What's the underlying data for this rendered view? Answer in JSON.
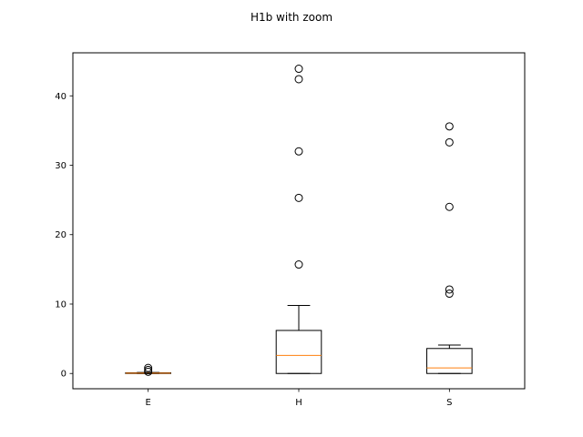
{
  "chart_data": {
    "type": "box",
    "title": "H1b with zoom",
    "xlabel": "",
    "ylabel": "",
    "ylim": [
      -2.2,
      46.2
    ],
    "yticks": [
      0,
      10,
      20,
      30,
      40
    ],
    "grid": false,
    "colors": {
      "box": "#000000",
      "median": "#ff7f0e",
      "background": "#ffffff"
    },
    "categories": [
      "E",
      "H",
      "S"
    ],
    "boxes": [
      {
        "label": "E",
        "whisker_low": 0.0,
        "q1": 0.0,
        "median": 0.05,
        "q3": 0.1,
        "whisker_high": 0.15,
        "outliers": [
          0.25,
          0.5,
          0.8
        ]
      },
      {
        "label": "H",
        "whisker_low": 0.0,
        "q1": 0.0,
        "median": 2.6,
        "q3": 6.2,
        "whisker_high": 9.8,
        "outliers": [
          15.7,
          25.3,
          32.0,
          42.4,
          43.9
        ]
      },
      {
        "label": "S",
        "whisker_low": 0.0,
        "q1": 0.0,
        "median": 0.8,
        "q3": 3.6,
        "whisker_high": 4.1,
        "outliers": [
          11.5,
          12.1,
          24.0,
          33.3,
          35.6
        ]
      }
    ]
  }
}
